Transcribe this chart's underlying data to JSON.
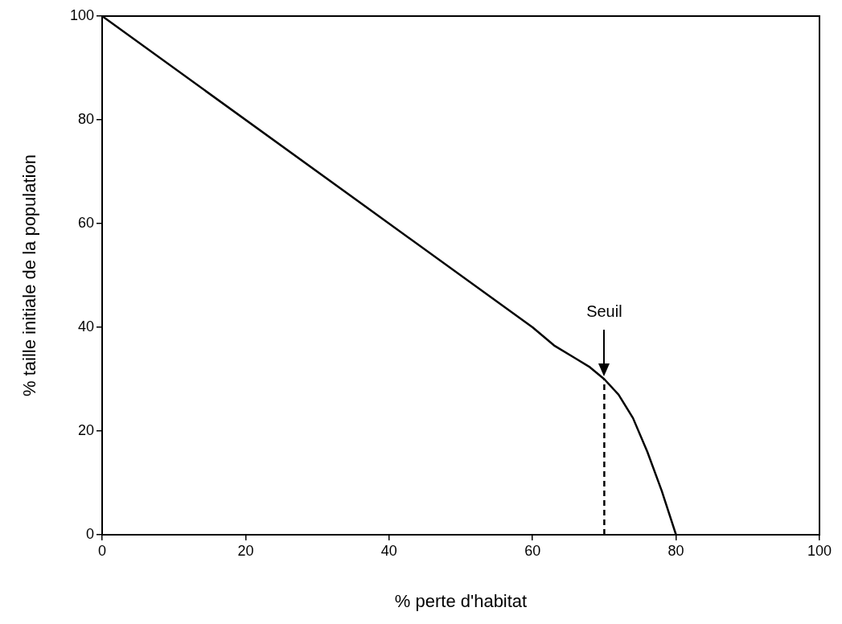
{
  "chart_data": {
    "type": "line",
    "xlabel": "% perte d'habitat",
    "ylabel": "% taille initiale de la population",
    "xlim": [
      0,
      100
    ],
    "ylim": [
      0,
      100
    ],
    "xticks": [
      0,
      20,
      40,
      60,
      80,
      100
    ],
    "yticks": [
      0,
      20,
      40,
      60,
      80,
      100
    ],
    "grid": false,
    "legend": false,
    "marker": "none",
    "series": [
      {
        "color": "#000000",
        "line_style": "solid",
        "x": [
          0,
          60,
          63,
          66,
          68,
          70,
          72,
          74,
          76,
          78,
          80
        ],
        "values": [
          100,
          40,
          36.5,
          34,
          32.3,
          30,
          27,
          22.5,
          16,
          8.5,
          0
        ]
      },
      {
        "color": "#000000",
        "line_style": "dashed",
        "x": [
          70,
          70
        ],
        "values": [
          0,
          30
        ]
      }
    ],
    "annotations": [
      "Seuil"
    ]
  }
}
